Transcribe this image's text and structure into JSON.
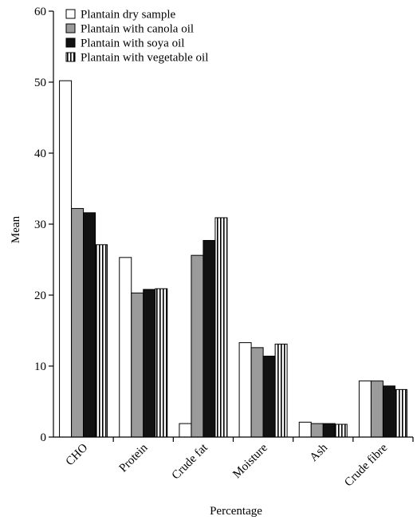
{
  "chart_data": {
    "type": "bar",
    "categories": [
      "CHO",
      "Protein",
      "Crude fat",
      "Moisture",
      "Ash",
      "Crude fibre"
    ],
    "series": [
      {
        "name": "Plantain dry sample",
        "values": [
          50.2,
          25.3,
          1.9,
          13.3,
          2.1,
          7.9
        ],
        "fill": "white"
      },
      {
        "name": "Plantain with canola oil",
        "values": [
          32.2,
          20.3,
          25.6,
          12.6,
          1.9,
          7.9
        ],
        "fill": "gray"
      },
      {
        "name": "Plantain with soya oil",
        "values": [
          31.6,
          20.8,
          27.7,
          11.4,
          1.9,
          7.2
        ],
        "fill": "black"
      },
      {
        "name": "Plantain with vegetable oil",
        "values": [
          27.1,
          20.9,
          30.9,
          13.1,
          1.8,
          6.7
        ],
        "fill": "vertical-stripes"
      }
    ],
    "title": "",
    "xlabel": "Percentage",
    "ylabel": "Mean",
    "ylim": [
      0,
      60
    ],
    "yticks": [
      0,
      10,
      20,
      30,
      40,
      50,
      60
    ],
    "grid": false,
    "legend_position": "top-left",
    "colors": {
      "gray": "#9b9b9b",
      "black": "#111111",
      "white": "#ffffff",
      "stroke": "#000000"
    }
  }
}
